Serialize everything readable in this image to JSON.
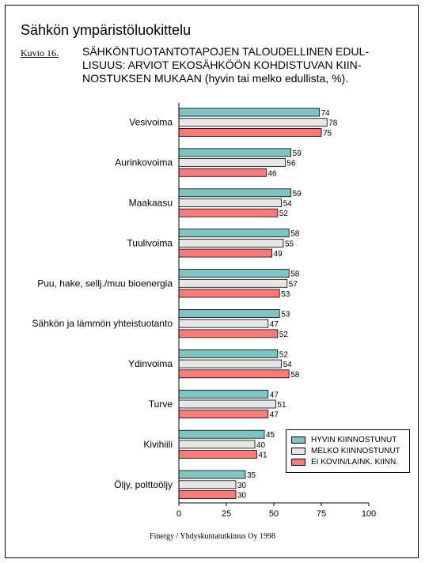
{
  "header": {
    "title": "Sähkön ympäristöluokittelu",
    "figure_label": "Kuvio 16.",
    "caption_lines": [
      "SÄHKÖNTUOTANTOTAPOJEN TALOUDELLINEN EDUL-",
      "LISUUS: ARVIOT EKOSÄHKÖÖN KOHDISTUVAN KIIN-",
      "NOSTUKSEN MUKAAN (hyvin tai melko edullista, %)."
    ]
  },
  "source": "Finergy / Yhdyskuntatutkimus Oy 1998",
  "colors": {
    "hyvin": "#7fc4c2",
    "melko": "#e6e6e6",
    "ei": "#fb7a7a"
  },
  "chart_data": {
    "type": "bar",
    "orientation": "horizontal",
    "categories": [
      "Vesivoima",
      "Aurinkovoima",
      "Maakaasu",
      "Tuulivoima",
      "Puu, hake, sellj./muu bioenergia",
      "Sähkön ja lämmön yhteistuotanto",
      "Ydinvoima",
      "Turve",
      "Kivihiili",
      "Öljy, polttoöljy"
    ],
    "series": [
      {
        "name": "HYVIN KIINNOSTUNUT",
        "values": [
          74,
          59,
          59,
          58,
          58,
          53,
          52,
          47,
          45,
          35
        ]
      },
      {
        "name": "MELKO KIINNOSTUNUT",
        "values": [
          78,
          56,
          54,
          55,
          57,
          47,
          54,
          51,
          40,
          30
        ]
      },
      {
        "name": "EI KOVIN/LAINK. KIINN.",
        "values": [
          75,
          46,
          52,
          49,
          53,
          52,
          58,
          47,
          41,
          30
        ]
      }
    ],
    "xlim": [
      0,
      100
    ],
    "xticks": [
      0,
      25,
      50,
      75,
      100
    ],
    "legend_position": "bottom-right",
    "grid": false
  }
}
